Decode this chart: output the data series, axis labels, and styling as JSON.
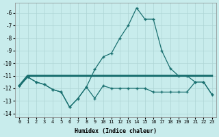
{
  "xlabel": "Humidex (Indice chaleur)",
  "background_color": "#c8ecec",
  "grid_color": "#aed4d4",
  "line_color": "#1a7070",
  "xlim": [
    -0.5,
    23.5
  ],
  "ylim": [
    -14.3,
    -5.2
  ],
  "yticks": [
    -6,
    -7,
    -8,
    -9,
    -10,
    -11,
    -12,
    -13,
    -14
  ],
  "xticks": [
    0,
    1,
    2,
    3,
    4,
    5,
    6,
    7,
    8,
    9,
    10,
    11,
    12,
    13,
    14,
    15,
    16,
    17,
    18,
    19,
    20,
    21,
    22,
    23
  ],
  "series1_x": [
    0,
    1,
    2,
    3,
    4,
    5,
    6,
    7,
    8,
    9,
    10,
    11,
    12,
    13,
    14,
    15,
    16,
    17,
    18,
    19,
    20,
    21,
    22,
    23
  ],
  "series1_y": [
    -11.8,
    -11.0,
    -11.0,
    -11.0,
    -11.0,
    -11.0,
    -11.0,
    -11.0,
    -11.0,
    -11.0,
    -11.0,
    -11.0,
    -11.0,
    -11.0,
    -11.0,
    -11.0,
    -11.0,
    -11.0,
    -11.0,
    -11.0,
    -11.0,
    -11.0,
    -11.0,
    -11.0
  ],
  "series2_x": [
    0,
    1,
    2,
    3,
    4,
    5,
    6,
    7,
    8,
    9,
    10,
    11,
    12,
    13,
    14,
    15,
    16,
    17,
    18,
    19,
    20,
    21,
    22,
    23
  ],
  "series2_y": [
    -11.8,
    -11.1,
    -11.5,
    -11.7,
    -12.1,
    -12.3,
    -13.5,
    -12.8,
    -11.9,
    -12.8,
    -11.8,
    -12.0,
    -12.0,
    -12.0,
    -12.0,
    -12.0,
    -12.3,
    -12.3,
    -12.3,
    -12.3,
    -12.3,
    -11.5,
    -11.5,
    -12.5
  ],
  "series3_x": [
    0,
    1,
    2,
    3,
    4,
    5,
    6,
    7,
    8,
    9,
    10,
    11,
    12,
    13,
    14,
    15,
    16,
    17,
    18,
    19,
    20,
    21,
    22,
    23
  ],
  "series3_y": [
    -11.8,
    -11.1,
    -11.5,
    -11.7,
    -12.1,
    -12.3,
    -13.5,
    -12.8,
    -11.9,
    -10.5,
    -9.5,
    -9.2,
    -8.0,
    -7.0,
    -5.6,
    -6.5,
    -6.5,
    -9.0,
    -10.4,
    -11.0,
    -11.0,
    -11.5,
    -11.5,
    -12.5
  ]
}
